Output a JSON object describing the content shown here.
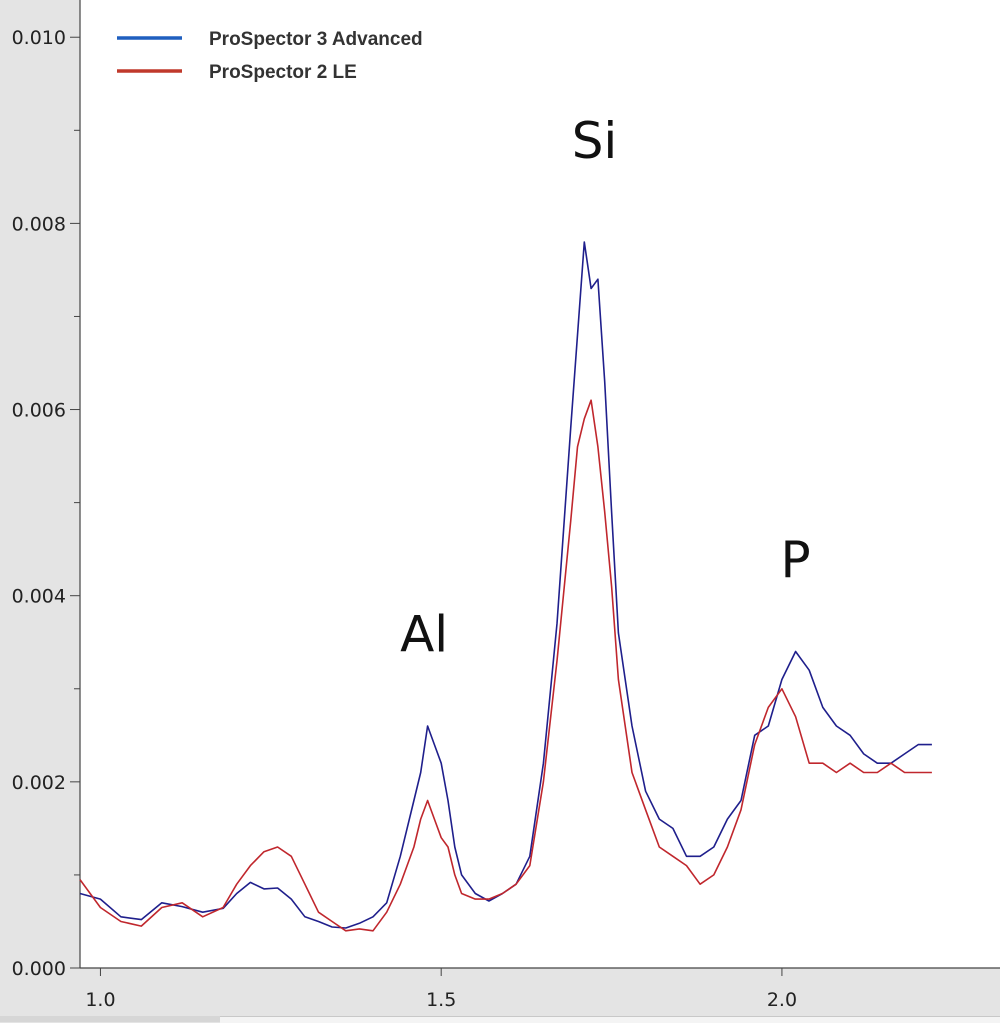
{
  "chart_data": {
    "type": "line",
    "title": "",
    "xlabel": "",
    "ylabel": "",
    "xlim": [
      0.97,
      2.32
    ],
    "ylim": [
      0.0,
      0.0104
    ],
    "x_ticks": [
      1.0,
      1.5,
      2.0
    ],
    "x_tick_labels": [
      "1.0",
      "1.5",
      "2.0"
    ],
    "y_ticks": [
      0.0,
      0.002,
      0.004,
      0.006,
      0.008,
      0.01
    ],
    "y_tick_labels": [
      "0.000",
      "0.002",
      "0.004",
      "0.006",
      "0.008",
      "0.010"
    ],
    "grid": false,
    "legend_position": "top-left",
    "series": [
      {
        "name": "ProSpector 3 Advanced",
        "color": "#1f1f8c",
        "legend_color": "#1f5fbf",
        "x": [
          0.97,
          1.0,
          1.03,
          1.06,
          1.09,
          1.12,
          1.15,
          1.18,
          1.2,
          1.22,
          1.24,
          1.26,
          1.28,
          1.3,
          1.32,
          1.34,
          1.36,
          1.38,
          1.4,
          1.42,
          1.44,
          1.45,
          1.46,
          1.47,
          1.48,
          1.49,
          1.5,
          1.51,
          1.52,
          1.53,
          1.55,
          1.57,
          1.59,
          1.61,
          1.63,
          1.65,
          1.67,
          1.69,
          1.7,
          1.71,
          1.72,
          1.73,
          1.74,
          1.75,
          1.76,
          1.78,
          1.8,
          1.82,
          1.84,
          1.86,
          1.88,
          1.9,
          1.92,
          1.94,
          1.96,
          1.98,
          2.0,
          2.02,
          2.04,
          2.06,
          2.08,
          2.1,
          2.12,
          2.14,
          2.16,
          2.18,
          2.2,
          2.22
        ],
        "values": [
          0.0008,
          0.00074,
          0.00055,
          0.00052,
          0.0007,
          0.00066,
          0.0006,
          0.00064,
          0.0008,
          0.00092,
          0.00085,
          0.00086,
          0.00074,
          0.00055,
          0.0005,
          0.00044,
          0.00043,
          0.00048,
          0.00055,
          0.0007,
          0.0012,
          0.0015,
          0.0018,
          0.0021,
          0.0026,
          0.0024,
          0.0022,
          0.0018,
          0.0013,
          0.001,
          0.0008,
          0.00072,
          0.0008,
          0.0009,
          0.0012,
          0.0022,
          0.0037,
          0.0058,
          0.0068,
          0.0078,
          0.0073,
          0.0074,
          0.0063,
          0.0049,
          0.0036,
          0.0026,
          0.0019,
          0.0016,
          0.0015,
          0.0012,
          0.0012,
          0.0013,
          0.0016,
          0.0018,
          0.0025,
          0.0026,
          0.0031,
          0.0034,
          0.0032,
          0.0028,
          0.0026,
          0.0025,
          0.0023,
          0.0022,
          0.0022,
          0.0023,
          0.0024,
          0.0024
        ]
      },
      {
        "name": "ProSpector 2 LE",
        "color": "#c0272d",
        "legend_color": "#c0392b",
        "x": [
          0.97,
          1.0,
          1.03,
          1.06,
          1.09,
          1.12,
          1.15,
          1.18,
          1.2,
          1.22,
          1.24,
          1.26,
          1.28,
          1.3,
          1.32,
          1.34,
          1.36,
          1.38,
          1.4,
          1.42,
          1.44,
          1.45,
          1.46,
          1.47,
          1.48,
          1.49,
          1.5,
          1.51,
          1.52,
          1.53,
          1.55,
          1.57,
          1.59,
          1.61,
          1.63,
          1.65,
          1.67,
          1.69,
          1.7,
          1.71,
          1.72,
          1.73,
          1.74,
          1.75,
          1.76,
          1.78,
          1.8,
          1.82,
          1.84,
          1.86,
          1.88,
          1.9,
          1.92,
          1.94,
          1.96,
          1.98,
          2.0,
          2.02,
          2.04,
          2.06,
          2.08,
          2.1,
          2.12,
          2.14,
          2.16,
          2.18,
          2.2,
          2.22
        ],
        "values": [
          0.00095,
          0.00065,
          0.0005,
          0.00045,
          0.00065,
          0.0007,
          0.00055,
          0.00065,
          0.0009,
          0.0011,
          0.00125,
          0.0013,
          0.0012,
          0.0009,
          0.0006,
          0.0005,
          0.0004,
          0.00042,
          0.0004,
          0.0006,
          0.0009,
          0.0011,
          0.0013,
          0.0016,
          0.0018,
          0.0016,
          0.0014,
          0.0013,
          0.001,
          0.0008,
          0.00074,
          0.00074,
          0.0008,
          0.0009,
          0.0011,
          0.002,
          0.0033,
          0.0048,
          0.0056,
          0.0059,
          0.0061,
          0.0056,
          0.0049,
          0.0041,
          0.0031,
          0.0021,
          0.0017,
          0.0013,
          0.0012,
          0.0011,
          0.0009,
          0.001,
          0.0013,
          0.0017,
          0.0024,
          0.0028,
          0.003,
          0.0027,
          0.0022,
          0.0022,
          0.0021,
          0.0022,
          0.0021,
          0.0021,
          0.0022,
          0.0021,
          0.0021,
          0.0021
        ]
      }
    ],
    "annotations": [
      {
        "text": "Al",
        "x": 1.475,
        "y": 0.0034
      },
      {
        "text": "Si",
        "x": 1.725,
        "y": 0.0087
      },
      {
        "text": "P",
        "x": 2.02,
        "y": 0.0042
      }
    ]
  }
}
